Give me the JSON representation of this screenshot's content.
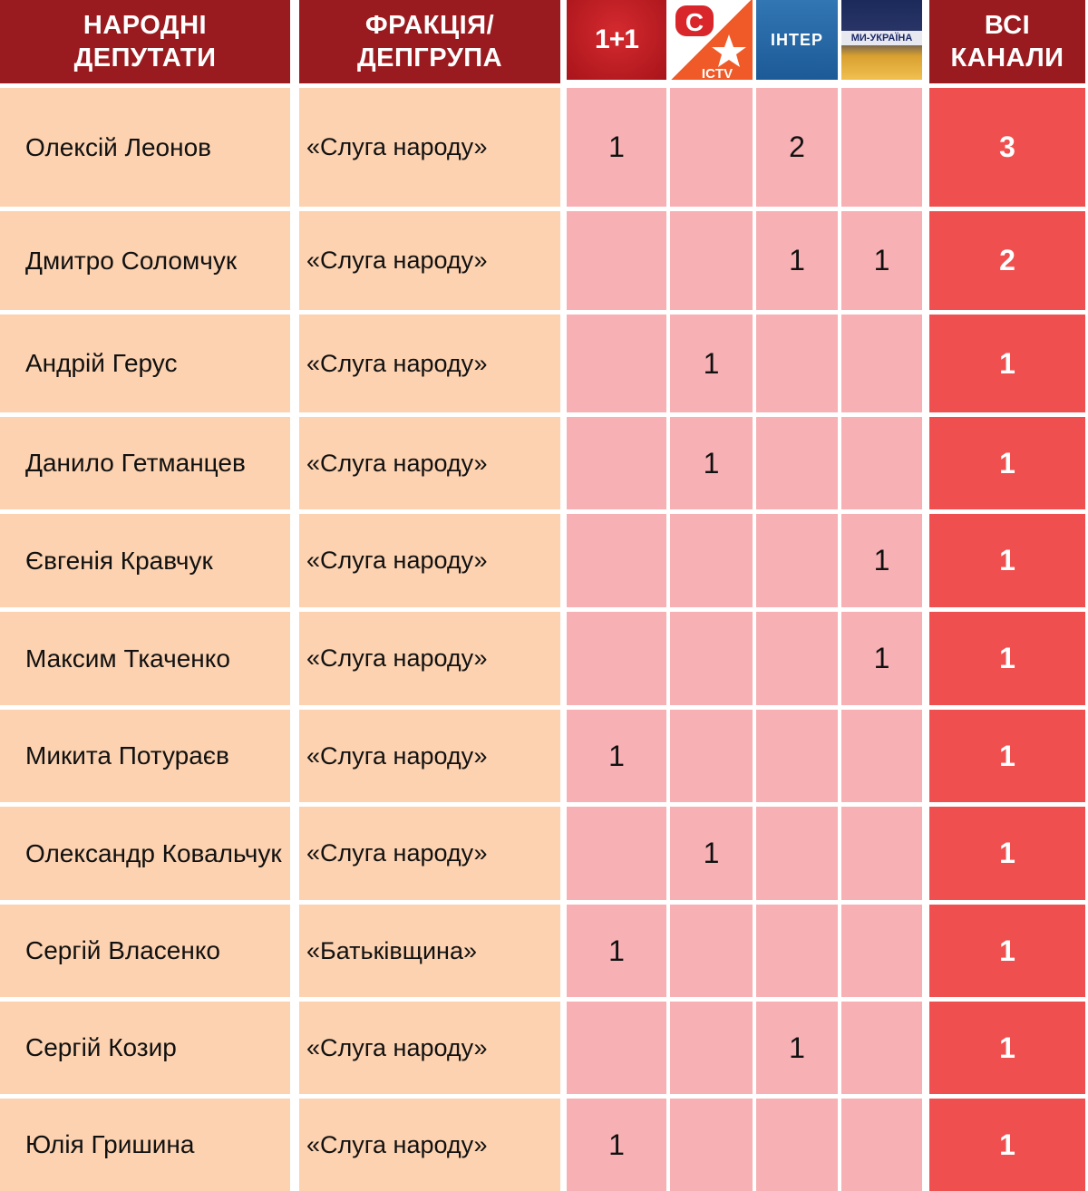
{
  "header": {
    "deputies": "НАРОДНІ\nДЕПУТАТИ",
    "faction": "ФРАКЦІЯ/\nДЕПГРУПА",
    "channels": [
      {
        "name": "1+1",
        "icon": "1plus1-logo"
      },
      {
        "name": "ICTV",
        "icon": "stb-ictv-logo"
      },
      {
        "name": "ІНТЕР",
        "icon": "inter-logo"
      },
      {
        "name": "МИ-УКРАЇНА",
        "icon": "my-ukraina-logo"
      }
    ],
    "total": "ВСІ\nКАНАЛИ"
  },
  "colors": {
    "header": "#9a1b1f",
    "name_cell": "#fdd2b0",
    "channel_cell": "#f7b0b3",
    "total_cell": "#ef4f4f"
  },
  "rows": [
    {
      "name": "Олексій Леонов",
      "faction": "«Слуга народу»",
      "channels": [
        "1",
        "",
        "2",
        ""
      ],
      "total": "3"
    },
    {
      "name": "Дмитро Соломчук",
      "faction": "«Слуга народу»",
      "channels": [
        "",
        "",
        "1",
        "1"
      ],
      "total": "2"
    },
    {
      "name": "Андрій Герус",
      "faction": "«Слуга народу»",
      "channels": [
        "",
        "1",
        "",
        ""
      ],
      "total": "1"
    },
    {
      "name": "Данило Гетманцев",
      "faction": "«Слуга народу»",
      "channels": [
        "",
        "1",
        "",
        ""
      ],
      "total": "1"
    },
    {
      "name": "Євгенія Кравчук",
      "faction": "«Слуга народу»",
      "channels": [
        "",
        "",
        "",
        "1"
      ],
      "total": "1"
    },
    {
      "name": "Максим Ткаченко",
      "faction": "«Слуга народу»",
      "channels": [
        "",
        "",
        "",
        "1"
      ],
      "total": "1"
    },
    {
      "name": "Микита Потураєв",
      "faction": "«Слуга народу»",
      "channels": [
        "1",
        "",
        "",
        ""
      ],
      "total": "1"
    },
    {
      "name": "Олександр Ковальчук",
      "faction": "«Слуга народу»",
      "channels": [
        "",
        "1",
        "",
        ""
      ],
      "total": "1"
    },
    {
      "name": "Сергій Власенко",
      "faction": "«Батьківщина»",
      "channels": [
        "1",
        "",
        "",
        ""
      ],
      "total": "1"
    },
    {
      "name": "Сергій Козир",
      "faction": "«Слуга народу»",
      "channels": [
        "",
        "",
        "1",
        ""
      ],
      "total": "1"
    },
    {
      "name": "Юлія Гришина",
      "faction": "«Слуга народу»",
      "channels": [
        "1",
        "",
        "",
        ""
      ],
      "total": "1"
    }
  ]
}
